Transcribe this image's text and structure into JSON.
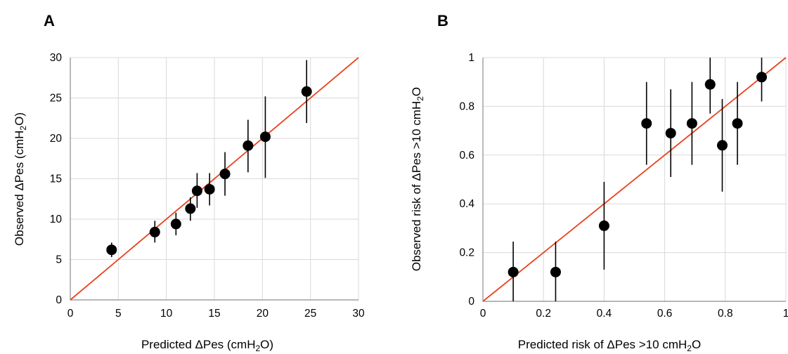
{
  "chart_data": [
    {
      "type": "scatter",
      "panel_label": "A",
      "title": "",
      "xlabel": {
        "pre": "Predicted ΔPes (cmH",
        "sub": "2",
        "post": "O)"
      },
      "ylabel": {
        "pre": "Observed ΔPes (cmH",
        "sub": "2",
        "post": "O)"
      },
      "xlim": [
        0,
        30
      ],
      "ylim": [
        0,
        30
      ],
      "xticks": [
        "0",
        "5",
        "10",
        "15",
        "20",
        "25",
        "30"
      ],
      "yticks": [
        "0",
        "5",
        "10",
        "15",
        "20",
        "25",
        "30"
      ],
      "grid": true,
      "reference_line": {
        "from": [
          0,
          0
        ],
        "to": [
          30,
          30
        ]
      },
      "points": [
        {
          "x": 4.3,
          "y": 6.2,
          "lo": 5.3,
          "hi": 7.1
        },
        {
          "x": 8.8,
          "y": 8.4,
          "lo": 7.1,
          "hi": 9.8
        },
        {
          "x": 11.0,
          "y": 9.4,
          "lo": 8.0,
          "hi": 10.8
        },
        {
          "x": 12.5,
          "y": 11.3,
          "lo": 9.8,
          "hi": 12.7
        },
        {
          "x": 13.2,
          "y": 13.5,
          "lo": 11.4,
          "hi": 15.7
        },
        {
          "x": 14.5,
          "y": 13.7,
          "lo": 11.7,
          "hi": 15.7
        },
        {
          "x": 16.1,
          "y": 15.6,
          "lo": 12.9,
          "hi": 18.3
        },
        {
          "x": 18.5,
          "y": 19.1,
          "lo": 15.8,
          "hi": 22.3
        },
        {
          "x": 20.3,
          "y": 20.2,
          "lo": 15.1,
          "hi": 25.2
        },
        {
          "x": 24.6,
          "y": 25.8,
          "lo": 21.9,
          "hi": 29.7
        }
      ]
    },
    {
      "type": "scatter",
      "panel_label": "B",
      "title": "",
      "xlabel": {
        "pre": "Predicted risk of ΔPes >10 cmH",
        "sub": "2",
        "post": "O"
      },
      "ylabel": {
        "pre": "Observed risk of ΔPes >10 cmH",
        "sub": "2",
        "post": "O"
      },
      "xlim": [
        0,
        1
      ],
      "ylim": [
        0,
        1
      ],
      "xticks": [
        "0",
        "0.2",
        "0.4",
        "0.6",
        "0.8",
        "1"
      ],
      "yticks": [
        "0",
        "0.2",
        "0.4",
        "0.6",
        "0.8",
        "1"
      ],
      "grid": true,
      "reference_line": {
        "from": [
          0,
          0
        ],
        "to": [
          1,
          1
        ]
      },
      "points": [
        {
          "x": 0.1,
          "y": 0.12,
          "lo": 0.0,
          "hi": 0.245
        },
        {
          "x": 0.24,
          "y": 0.12,
          "lo": 0.0,
          "hi": 0.245
        },
        {
          "x": 0.4,
          "y": 0.31,
          "lo": 0.13,
          "hi": 0.49
        },
        {
          "x": 0.54,
          "y": 0.73,
          "lo": 0.56,
          "hi": 0.9
        },
        {
          "x": 0.62,
          "y": 0.69,
          "lo": 0.51,
          "hi": 0.87
        },
        {
          "x": 0.69,
          "y": 0.73,
          "lo": 0.56,
          "hi": 0.9
        },
        {
          "x": 0.75,
          "y": 0.89,
          "lo": 0.77,
          "hi": 1.0
        },
        {
          "x": 0.79,
          "y": 0.64,
          "lo": 0.45,
          "hi": 0.83
        },
        {
          "x": 0.84,
          "y": 0.73,
          "lo": 0.56,
          "hi": 0.9
        },
        {
          "x": 0.92,
          "y": 0.92,
          "lo": 0.82,
          "hi": 1.0
        }
      ]
    }
  ],
  "colors": {
    "reference_line": "#e8431c",
    "marker": "#000000",
    "error_bar": "#000000",
    "grid": "#d9d9d9",
    "axis": "#8c8c8c"
  }
}
